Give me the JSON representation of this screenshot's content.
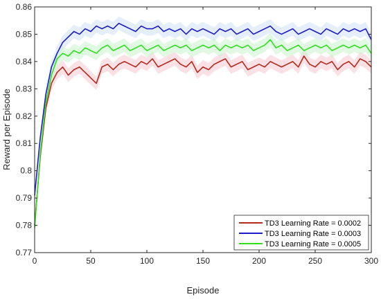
{
  "chart_data": {
    "type": "line",
    "title": "",
    "xlabel": "Episode",
    "ylabel": "Reward per Episode",
    "xlim": [
      0,
      300
    ],
    "ylim": [
      0.77,
      0.86
    ],
    "xticks": [
      "0",
      "50",
      "100",
      "150",
      "200",
      "250",
      "300"
    ],
    "yticks": [
      "0.77",
      "0.78",
      "0.79",
      "0.8",
      "0.81",
      "0.82",
      "0.83",
      "0.84",
      "0.85",
      "0.86"
    ],
    "grid": false,
    "legend_position": "bottom-right",
    "series": [
      {
        "name": "TD3 Learning Rate = 0.0002",
        "color": "#b5281b",
        "band_color": "#f6c8d2",
        "x": [
          0,
          5,
          10,
          15,
          20,
          25,
          30,
          35,
          40,
          45,
          50,
          55,
          60,
          65,
          70,
          75,
          80,
          85,
          90,
          95,
          100,
          105,
          110,
          115,
          120,
          125,
          130,
          135,
          140,
          145,
          150,
          155,
          160,
          165,
          170,
          175,
          180,
          185,
          190,
          195,
          200,
          205,
          210,
          215,
          220,
          225,
          230,
          235,
          240,
          245,
          250,
          255,
          260,
          265,
          270,
          275,
          280,
          285,
          290,
          295,
          300
        ],
        "values": [
          0.78,
          0.805,
          0.823,
          0.832,
          0.836,
          0.838,
          0.835,
          0.837,
          0.838,
          0.836,
          0.834,
          0.832,
          0.838,
          0.839,
          0.837,
          0.839,
          0.84,
          0.839,
          0.838,
          0.84,
          0.839,
          0.841,
          0.838,
          0.839,
          0.84,
          0.841,
          0.839,
          0.838,
          0.84,
          0.836,
          0.838,
          0.837,
          0.839,
          0.84,
          0.841,
          0.838,
          0.839,
          0.84,
          0.837,
          0.838,
          0.839,
          0.838,
          0.84,
          0.839,
          0.838,
          0.839,
          0.84,
          0.838,
          0.842,
          0.839,
          0.838,
          0.84,
          0.839,
          0.84,
          0.837,
          0.839,
          0.84,
          0.838,
          0.841,
          0.84,
          0.838
        ]
      },
      {
        "name": "TD3 Learning Rate = 0.0003",
        "color": "#1a1ac8",
        "band_color": "#cfe0f7",
        "x": [
          0,
          5,
          10,
          15,
          20,
          25,
          30,
          35,
          40,
          45,
          50,
          55,
          60,
          65,
          70,
          75,
          80,
          85,
          90,
          95,
          100,
          105,
          110,
          115,
          120,
          125,
          130,
          135,
          140,
          145,
          150,
          155,
          160,
          165,
          170,
          175,
          180,
          185,
          190,
          195,
          200,
          205,
          210,
          215,
          220,
          225,
          230,
          235,
          240,
          245,
          250,
          255,
          260,
          265,
          270,
          275,
          280,
          285,
          290,
          295,
          300
        ],
        "values": [
          0.791,
          0.812,
          0.828,
          0.838,
          0.843,
          0.847,
          0.849,
          0.851,
          0.85,
          0.852,
          0.851,
          0.853,
          0.852,
          0.853,
          0.852,
          0.854,
          0.853,
          0.852,
          0.851,
          0.853,
          0.852,
          0.852,
          0.853,
          0.851,
          0.852,
          0.851,
          0.852,
          0.85,
          0.852,
          0.851,
          0.852,
          0.851,
          0.85,
          0.852,
          0.851,
          0.852,
          0.85,
          0.851,
          0.852,
          0.85,
          0.851,
          0.852,
          0.853,
          0.851,
          0.85,
          0.851,
          0.852,
          0.85,
          0.851,
          0.852,
          0.851,
          0.85,
          0.852,
          0.851,
          0.85,
          0.852,
          0.851,
          0.852,
          0.851,
          0.852,
          0.848
        ]
      },
      {
        "name": "TD3 Learning Rate = 0.0005",
        "color": "#2ee01c",
        "band_color": "#c8f2cc",
        "x": [
          0,
          5,
          10,
          15,
          20,
          25,
          30,
          35,
          40,
          45,
          50,
          55,
          60,
          65,
          70,
          75,
          80,
          85,
          90,
          95,
          100,
          105,
          110,
          115,
          120,
          125,
          130,
          135,
          140,
          145,
          150,
          155,
          160,
          165,
          170,
          175,
          180,
          185,
          190,
          195,
          200,
          205,
          210,
          215,
          220,
          225,
          230,
          235,
          240,
          245,
          250,
          255,
          260,
          265,
          270,
          275,
          280,
          285,
          290,
          295,
          300
        ],
        "values": [
          0.779,
          0.806,
          0.825,
          0.835,
          0.841,
          0.843,
          0.842,
          0.844,
          0.843,
          0.845,
          0.844,
          0.843,
          0.845,
          0.846,
          0.844,
          0.845,
          0.846,
          0.844,
          0.845,
          0.846,
          0.844,
          0.845,
          0.846,
          0.844,
          0.845,
          0.846,
          0.845,
          0.846,
          0.844,
          0.845,
          0.846,
          0.845,
          0.846,
          0.844,
          0.846,
          0.845,
          0.846,
          0.845,
          0.846,
          0.844,
          0.845,
          0.846,
          0.848,
          0.845,
          0.846,
          0.844,
          0.845,
          0.846,
          0.844,
          0.845,
          0.846,
          0.845,
          0.846,
          0.844,
          0.845,
          0.846,
          0.845,
          0.846,
          0.845,
          0.846,
          0.843
        ]
      }
    ]
  }
}
